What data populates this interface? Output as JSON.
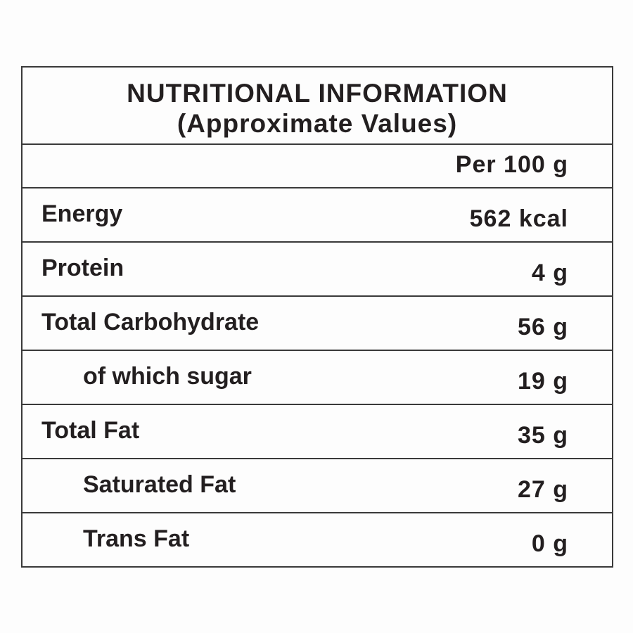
{
  "header": {
    "title": "NUTRITIONAL INFORMATION",
    "subtitle": "(Approximate Values)"
  },
  "table": {
    "column_header": "Per 100 g",
    "rows": [
      [
        "Energy",
        "562 kcal"
      ],
      [
        "Protein",
        "4 g"
      ],
      [
        "Total Carbohydrate",
        "56 g"
      ],
      [
        "of which sugar",
        "19 g"
      ],
      [
        "Total Fat",
        "35 g"
      ],
      [
        "Saturated Fat",
        "27 g"
      ],
      [
        "Trans Fat",
        "0 g"
      ]
    ]
  }
}
